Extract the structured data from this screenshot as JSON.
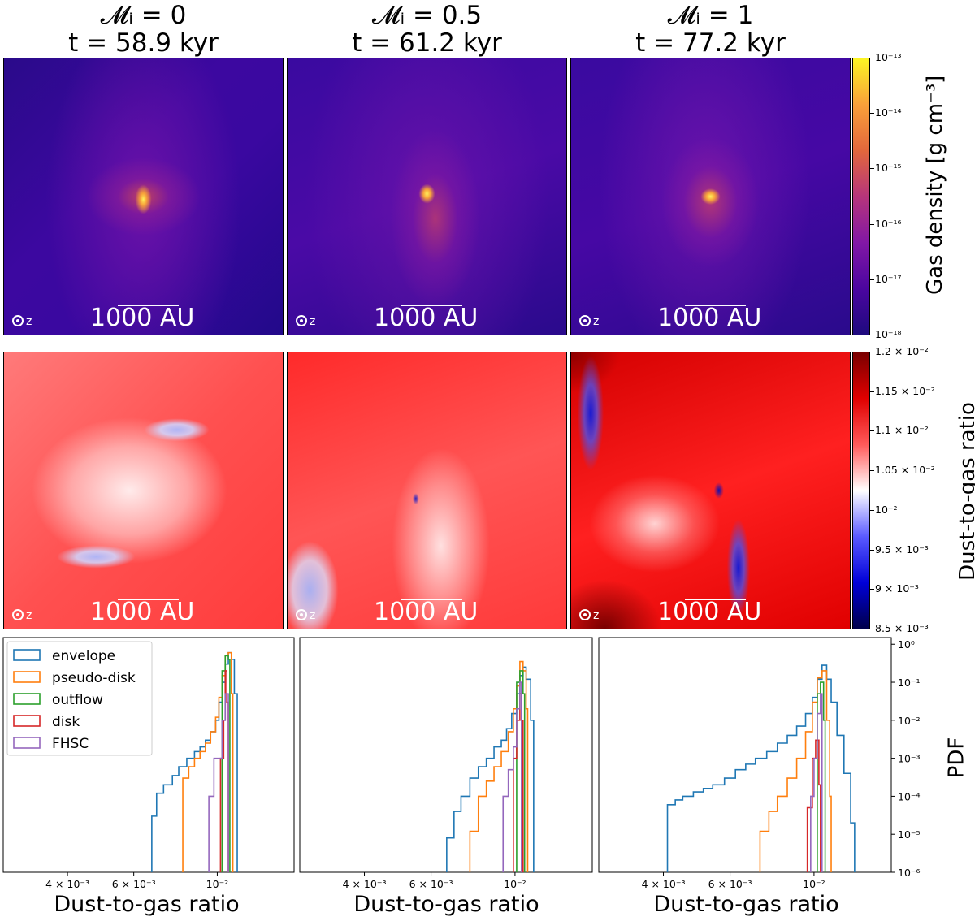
{
  "columns": [
    {
      "title_mach": "𝓜ᵢ = 0",
      "title_time": "t = 58.9 kyr"
    },
    {
      "title_mach": "𝓜ᵢ = 0.5",
      "title_time": "t = 61.2 kyr"
    },
    {
      "title_mach": "𝓜ᵢ = 1",
      "title_time": "t = 77.2 kyr"
    }
  ],
  "scalebar_label": "1000 AU",
  "axis_symbol": "z",
  "density_colorbar": {
    "title": "Gas density [g cm⁻³]",
    "ticks": [
      "10⁻¹³",
      "10⁻¹⁴",
      "10⁻¹⁵",
      "10⁻¹⁶",
      "10⁻¹⁷",
      "10⁻¹⁸"
    ],
    "colors": [
      "#fcf524",
      "#f9a03a",
      "#e2673c",
      "#b6357b",
      "#8217a6",
      "#4b06a0",
      "#1e0a7e"
    ]
  },
  "ratio_colorbar": {
    "title": "Dust-to-gas ratio",
    "ticks": [
      "1.2 × 10⁻²",
      "1.15 × 10⁻²",
      "1.1 × 10⁻²",
      "1.05 × 10⁻²",
      "10⁻²",
      "9.5 × 10⁻³",
      "9 × 10⁻³",
      "8.5 × 10⁻³"
    ],
    "colors": [
      "#7a0000",
      "#e00000",
      "#ff5a5a",
      "#ffffff",
      "#5a5aff",
      "#0000d8",
      "#00004a"
    ]
  },
  "chart_data": {
    "type": "histogram",
    "xlabel": "Dust-to-gas ratio",
    "ylabel": "PDF",
    "xscale": "log",
    "yscale": "log",
    "xlim": [
      0.0027,
      0.016
    ],
    "ylim": [
      1e-06,
      1.5
    ],
    "x_tick_labels": [
      "4 × 10⁻³",
      "6 × 10⁻³",
      "10⁻²"
    ],
    "x_tick_values": [
      0.004,
      0.006,
      0.01
    ],
    "y_tick_labels": [
      "10⁰",
      "10⁻¹",
      "10⁻²",
      "10⁻³",
      "10⁻⁴",
      "10⁻⁵",
      "10⁻⁶"
    ],
    "y_tick_values": [
      1,
      0.1,
      0.01,
      0.001,
      0.0001,
      1e-05,
      1e-06
    ],
    "legend": [
      {
        "name": "envelope",
        "color": "#1f77b4"
      },
      {
        "name": "pseudo-disk",
        "color": "#ff7f0e"
      },
      {
        "name": "outflow",
        "color": "#2ca02c"
      },
      {
        "name": "disk",
        "color": "#d62728"
      },
      {
        "name": "FHSC",
        "color": "#9467bd"
      }
    ],
    "panels": [
      {
        "series": [
          {
            "name": "envelope",
            "color": "#1f77b4",
            "points": [
              [
                0.0067,
                1e-06
              ],
              [
                0.0067,
                3e-05
              ],
              [
                0.0069,
                0.00012
              ],
              [
                0.0072,
                0.0002
              ],
              [
                0.0076,
                0.00035
              ],
              [
                0.0079,
                0.0006
              ],
              [
                0.0083,
                0.001
              ],
              [
                0.0087,
                0.0015
              ],
              [
                0.009,
                0.002
              ],
              [
                0.0093,
                0.003
              ],
              [
                0.0096,
                0.005
              ],
              [
                0.0099,
                0.01
              ],
              [
                0.0101,
                0.03
              ],
              [
                0.0103,
                0.1
              ],
              [
                0.0105,
                0.3
              ],
              [
                0.0107,
                0.6
              ],
              [
                0.0109,
                0.4
              ],
              [
                0.0111,
                0.05
              ],
              [
                0.0113,
                0.001
              ],
              [
                0.0113,
                1e-06
              ]
            ]
          },
          {
            "name": "pseudo-disk",
            "color": "#ff7f0e",
            "points": [
              [
                0.0081,
                1e-06
              ],
              [
                0.0081,
                0.0003
              ],
              [
                0.0084,
                0.0006
              ],
              [
                0.0087,
                0.001
              ],
              [
                0.009,
                0.0015
              ],
              [
                0.0093,
                0.0025
              ],
              [
                0.0096,
                0.005
              ],
              [
                0.0099,
                0.012
              ],
              [
                0.0101,
                0.04
              ],
              [
                0.0103,
                0.15
              ],
              [
                0.0105,
                0.5
              ],
              [
                0.0107,
                0.6
              ],
              [
                0.0109,
                0.05
              ],
              [
                0.011,
                1e-06
              ]
            ]
          },
          {
            "name": "outflow",
            "color": "#2ca02c",
            "points": [
              [
                0.0103,
                1e-06
              ],
              [
                0.0103,
                0.2
              ],
              [
                0.0105,
                0.5
              ],
              [
                0.0107,
                0.4
              ],
              [
                0.0108,
                1e-06
              ]
            ]
          },
          {
            "name": "disk",
            "color": "#d62728",
            "points": [
              [
                0.0102,
                1e-06
              ],
              [
                0.0102,
                0.001
              ],
              [
                0.0104,
                0.01
              ],
              [
                0.0105,
                0.2
              ],
              [
                0.0106,
                0.03
              ],
              [
                0.0107,
                1e-06
              ]
            ]
          },
          {
            "name": "FHSC",
            "color": "#9467bd",
            "points": [
              [
                0.0095,
                1e-06
              ],
              [
                0.0095,
                0.0001
              ],
              [
                0.0098,
                0.001
              ],
              [
                0.0101,
                0.001
              ],
              [
                0.0103,
                0.01
              ],
              [
                0.0105,
                0.05
              ],
              [
                0.0107,
                1e-06
              ]
            ]
          }
        ]
      },
      {
        "series": [
          {
            "name": "envelope",
            "color": "#1f77b4",
            "points": [
              [
                0.0066,
                1e-06
              ],
              [
                0.0066,
                8e-06
              ],
              [
                0.0069,
                4e-05
              ],
              [
                0.0072,
                0.0001
              ],
              [
                0.0076,
                0.0003
              ],
              [
                0.008,
                0.0006
              ],
              [
                0.0084,
                0.001
              ],
              [
                0.0088,
                0.002
              ],
              [
                0.0092,
                0.003
              ],
              [
                0.0095,
                0.006
              ],
              [
                0.0098,
                0.015
              ],
              [
                0.0101,
                0.05
              ],
              [
                0.0103,
                0.15
              ],
              [
                0.0105,
                0.25
              ],
              [
                0.0107,
                0.12
              ],
              [
                0.011,
                0.01
              ],
              [
                0.0112,
                0.0001
              ],
              [
                0.0112,
                1e-06
              ]
            ]
          },
          {
            "name": "pseudo-disk",
            "color": "#ff7f0e",
            "points": [
              [
                0.0076,
                1e-06
              ],
              [
                0.0076,
                1.2e-05
              ],
              [
                0.008,
                0.0001
              ],
              [
                0.0084,
                0.00025
              ],
              [
                0.0088,
                0.0006
              ],
              [
                0.0092,
                0.0015
              ],
              [
                0.0096,
                0.005
              ],
              [
                0.0099,
                0.02
              ],
              [
                0.0101,
                0.08
              ],
              [
                0.0103,
                0.35
              ],
              [
                0.0105,
                0.2
              ],
              [
                0.0107,
                0.02
              ],
              [
                0.0108,
                1e-06
              ]
            ]
          },
          {
            "name": "outflow",
            "color": "#2ca02c",
            "points": [
              [
                0.0101,
                1e-06
              ],
              [
                0.0101,
                0.1
              ],
              [
                0.0103,
                0.2
              ],
              [
                0.0105,
                0.05
              ],
              [
                0.0106,
                1e-06
              ]
            ]
          },
          {
            "name": "disk",
            "color": "#d62728",
            "points": [
              [
                0.0099,
                1e-06
              ],
              [
                0.0099,
                0.001
              ],
              [
                0.0101,
                0.01
              ],
              [
                0.0103,
                0.05
              ],
              [
                0.0104,
                0.01
              ],
              [
                0.0105,
                1e-06
              ]
            ]
          },
          {
            "name": "FHSC",
            "color": "#9467bd",
            "points": [
              [
                0.0093,
                1e-06
              ],
              [
                0.0093,
                0.0001
              ],
              [
                0.0096,
                0.0005
              ],
              [
                0.0099,
                0.002
              ],
              [
                0.0101,
                0.02
              ],
              [
                0.0103,
                0.1
              ],
              [
                0.0104,
                1e-06
              ]
            ]
          }
        ]
      },
      {
        "series": [
          {
            "name": "envelope",
            "color": "#1f77b4",
            "points": [
              [
                0.0041,
                1e-06
              ],
              [
                0.0041,
                6e-05
              ],
              [
                0.0043,
                8e-05
              ],
              [
                0.0045,
                0.0001
              ],
              [
                0.0048,
                0.00013
              ],
              [
                0.0051,
                0.00016
              ],
              [
                0.0054,
                0.0002
              ],
              [
                0.0058,
                0.0003
              ],
              [
                0.0062,
                0.0005
              ],
              [
                0.0066,
                0.0007
              ],
              [
                0.007,
                0.001
              ],
              [
                0.0075,
                0.0015
              ],
              [
                0.008,
                0.0025
              ],
              [
                0.0085,
                0.004
              ],
              [
                0.009,
                0.007
              ],
              [
                0.0095,
                0.015
              ],
              [
                0.0099,
                0.04
              ],
              [
                0.0102,
                0.12
              ],
              [
                0.0105,
                0.28
              ],
              [
                0.0108,
                0.12
              ],
              [
                0.0111,
                0.03
              ],
              [
                0.0115,
                0.004
              ],
              [
                0.012,
                0.0004
              ],
              [
                0.0125,
                2e-05
              ],
              [
                0.0128,
                1e-06
              ]
            ]
          },
          {
            "name": "pseudo-disk",
            "color": "#ff7f0e",
            "points": [
              [
                0.0072,
                1e-06
              ],
              [
                0.0072,
                1.2e-05
              ],
              [
                0.0076,
                4e-05
              ],
              [
                0.008,
                0.0001
              ],
              [
                0.0085,
                0.0003
              ],
              [
                0.009,
                0.001
              ],
              [
                0.0095,
                0.005
              ],
              [
                0.0099,
                0.03
              ],
              [
                0.0102,
                0.13
              ],
              [
                0.0105,
                0.2
              ],
              [
                0.0108,
                0.01
              ],
              [
                0.011,
                0.0001
              ],
              [
                0.0111,
                1e-06
              ]
            ]
          },
          {
            "name": "outflow",
            "color": "#2ca02c",
            "points": [
              [
                0.0102,
                1e-06
              ],
              [
                0.0102,
                0.05
              ],
              [
                0.0104,
                0.1
              ],
              [
                0.0106,
                0.01
              ],
              [
                0.0107,
                1e-06
              ]
            ]
          },
          {
            "name": "disk",
            "color": "#d62728",
            "points": [
              [
                0.0096,
                1e-06
              ],
              [
                0.0096,
                5e-05
              ],
              [
                0.0099,
                0.001
              ],
              [
                0.0101,
                0.003
              ],
              [
                0.0103,
                0.0002
              ],
              [
                0.0104,
                1e-06
              ]
            ]
          },
          {
            "name": "FHSC",
            "color": "#9467bd",
            "points": [
              [
                0.0098,
                1e-06
              ],
              [
                0.0098,
                0.0001
              ],
              [
                0.01,
                0.001
              ],
              [
                0.0102,
                0.015
              ],
              [
                0.0104,
                0.05
              ],
              [
                0.0105,
                1e-06
              ]
            ]
          }
        ]
      }
    ]
  }
}
